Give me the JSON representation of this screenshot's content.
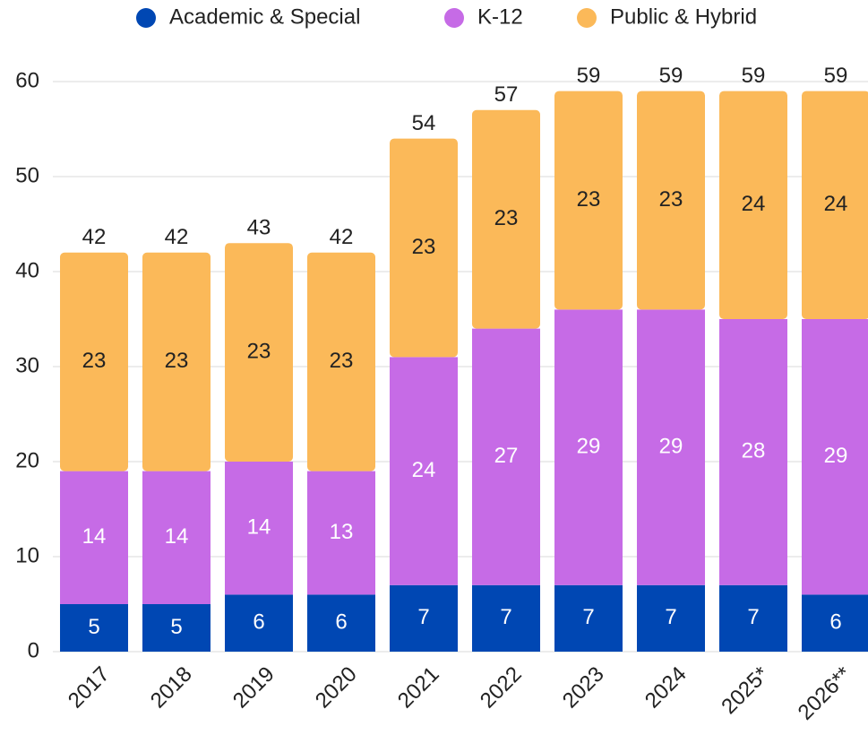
{
  "chart_data": {
    "type": "stacked_bar",
    "categories": [
      "2017",
      "2018",
      "2019",
      "2020",
      "2021",
      "2022",
      "2023",
      "2024",
      "2025*",
      "2026**"
    ],
    "series": [
      {
        "name": "Academic & Special",
        "color": "#0047b3",
        "values": [
          5,
          5,
          6,
          6,
          7,
          7,
          7,
          7,
          7,
          6
        ]
      },
      {
        "name": "K-12",
        "color": "#c66be6",
        "values": [
          14,
          14,
          14,
          13,
          24,
          27,
          29,
          29,
          28,
          29
        ]
      },
      {
        "name": "Public & Hybrid",
        "color": "#fbb959",
        "values": [
          23,
          23,
          23,
          23,
          23,
          23,
          23,
          23,
          24,
          24
        ]
      }
    ],
    "totals": [
      42,
      42,
      43,
      42,
      54,
      57,
      59,
      59,
      59,
      59
    ],
    "ylim": [
      0,
      60
    ],
    "yticks": [
      0,
      10,
      20,
      30,
      40,
      50,
      60
    ],
    "grid": true,
    "legend": "top"
  }
}
